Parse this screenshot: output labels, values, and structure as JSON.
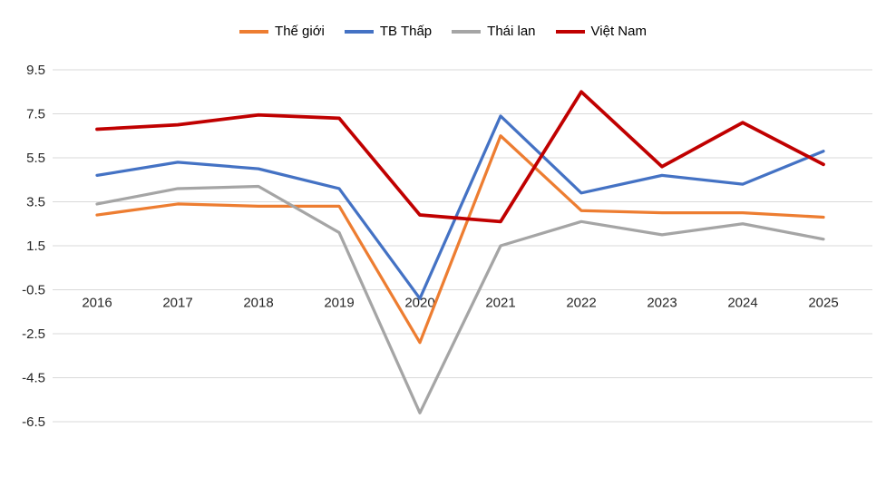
{
  "chart_data": {
    "type": "line",
    "title": "",
    "xlabel": "",
    "ylabel": "",
    "x": [
      2016,
      2017,
      2018,
      2019,
      2020,
      2021,
      2022,
      2023,
      2024,
      2025
    ],
    "series": [
      {
        "name": "Thế giới",
        "color": "#ED7D31",
        "width": 3.25,
        "values": [
          2.9,
          3.4,
          3.3,
          3.3,
          -2.9,
          6.5,
          3.1,
          3.0,
          3.0,
          2.8
        ]
      },
      {
        "name": "TB Thấp",
        "color": "#4472C4",
        "width": 3.25,
        "values": [
          4.7,
          5.3,
          5.0,
          4.1,
          -0.9,
          7.4,
          3.9,
          4.7,
          4.3,
          5.8
        ]
      },
      {
        "name": "Thái lan",
        "color": "#A5A5A5",
        "width": 3.25,
        "values": [
          3.4,
          4.1,
          4.2,
          2.1,
          -6.1,
          1.5,
          2.6,
          2.0,
          2.5,
          1.8
        ]
      },
      {
        "name": "Việt Nam",
        "color": "#C00000",
        "width": 3.75,
        "values": [
          6.8,
          7.0,
          7.45,
          7.3,
          2.9,
          2.6,
          8.5,
          5.1,
          7.1,
          5.2
        ]
      }
    ],
    "ylim": [
      -6.5,
      9.5
    ],
    "yticks": [
      9.5,
      7.5,
      5.5,
      3.5,
      1.5,
      -0.5,
      -2.5,
      -4.5,
      -6.5
    ],
    "grid": true,
    "grid_color": "#d9d9d9",
    "text_color": "#262626",
    "legend_position": "top"
  }
}
